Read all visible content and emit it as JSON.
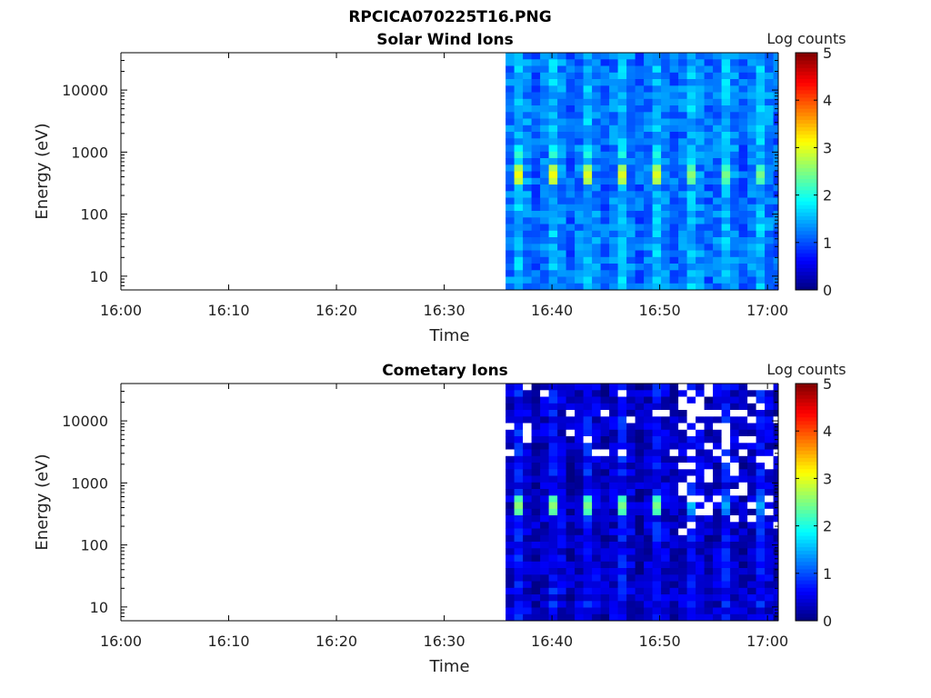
{
  "figure_title": "RPCICA070225T16.PNG",
  "chart_data": [
    {
      "type": "heatmap",
      "title": "Solar Wind Ions",
      "xlabel": "Time",
      "ylabel": "Energy (eV)",
      "colorbar_label": "Log counts",
      "x_ticks": [
        "16:00",
        "16:10",
        "16:20",
        "16:30",
        "16:40",
        "16:50",
        "17:00"
      ],
      "xlim_minutes": [
        0,
        61
      ],
      "y_scale": "log",
      "ylim": [
        6,
        40000
      ],
      "y_ticks": [
        {
          "value": 10,
          "label": "10"
        },
        {
          "value": 100,
          "label": "100"
        },
        {
          "value": 1000,
          "label": "1000"
        },
        {
          "value": 10000,
          "label": "10000"
        }
      ],
      "clim": [
        0,
        5
      ],
      "colorbar_ticks": [
        "0",
        "1",
        "2",
        "3",
        "4",
        "5"
      ],
      "colormap": "jet",
      "data_start_minute": 35.7,
      "data_end_minute": 61,
      "sweep_centers_minutes": [
        37.0,
        40.2,
        43.4,
        46.6,
        49.8,
        53.0,
        56.2,
        59.4
      ],
      "peak_log_counts": [
        3.1,
        3.1,
        3.0,
        3.0,
        3.0,
        2.6,
        2.5,
        2.5
      ],
      "peak_energy_ev": [
        420,
        420,
        420,
        420,
        420,
        420,
        420,
        420
      ],
      "secondary_peak_energy_ev": 950,
      "background_log_counts": 1.1
    },
    {
      "type": "heatmap",
      "title": "Cometary Ions",
      "xlabel": "Time",
      "ylabel": "Energy (eV)",
      "colorbar_label": "Log counts",
      "x_ticks": [
        "16:00",
        "16:10",
        "16:20",
        "16:30",
        "16:40",
        "16:50",
        "17:00"
      ],
      "xlim_minutes": [
        0,
        61
      ],
      "y_scale": "log",
      "ylim": [
        6,
        40000
      ],
      "y_ticks": [
        {
          "value": 10,
          "label": "10"
        },
        {
          "value": 100,
          "label": "100"
        },
        {
          "value": 1000,
          "label": "1000"
        },
        {
          "value": 10000,
          "label": "10000"
        }
      ],
      "clim": [
        0,
        5
      ],
      "colorbar_ticks": [
        "0",
        "1",
        "2",
        "3",
        "4",
        "5"
      ],
      "colormap": "jet",
      "data_start_minute": 35.7,
      "data_end_minute": 61,
      "sweep_centers_minutes": [
        37.0,
        40.2,
        43.4,
        46.6,
        49.8,
        53.0,
        56.2,
        59.4
      ],
      "peak_log_counts": [
        2.6,
        2.6,
        2.5,
        2.5,
        2.5,
        1.6,
        1.5,
        1.5
      ],
      "peak_energy_ev": [
        420,
        420,
        420,
        420,
        420,
        420,
        420,
        420
      ],
      "background_log_counts": 0.4,
      "sparse_after_minute": 51.5
    }
  ]
}
